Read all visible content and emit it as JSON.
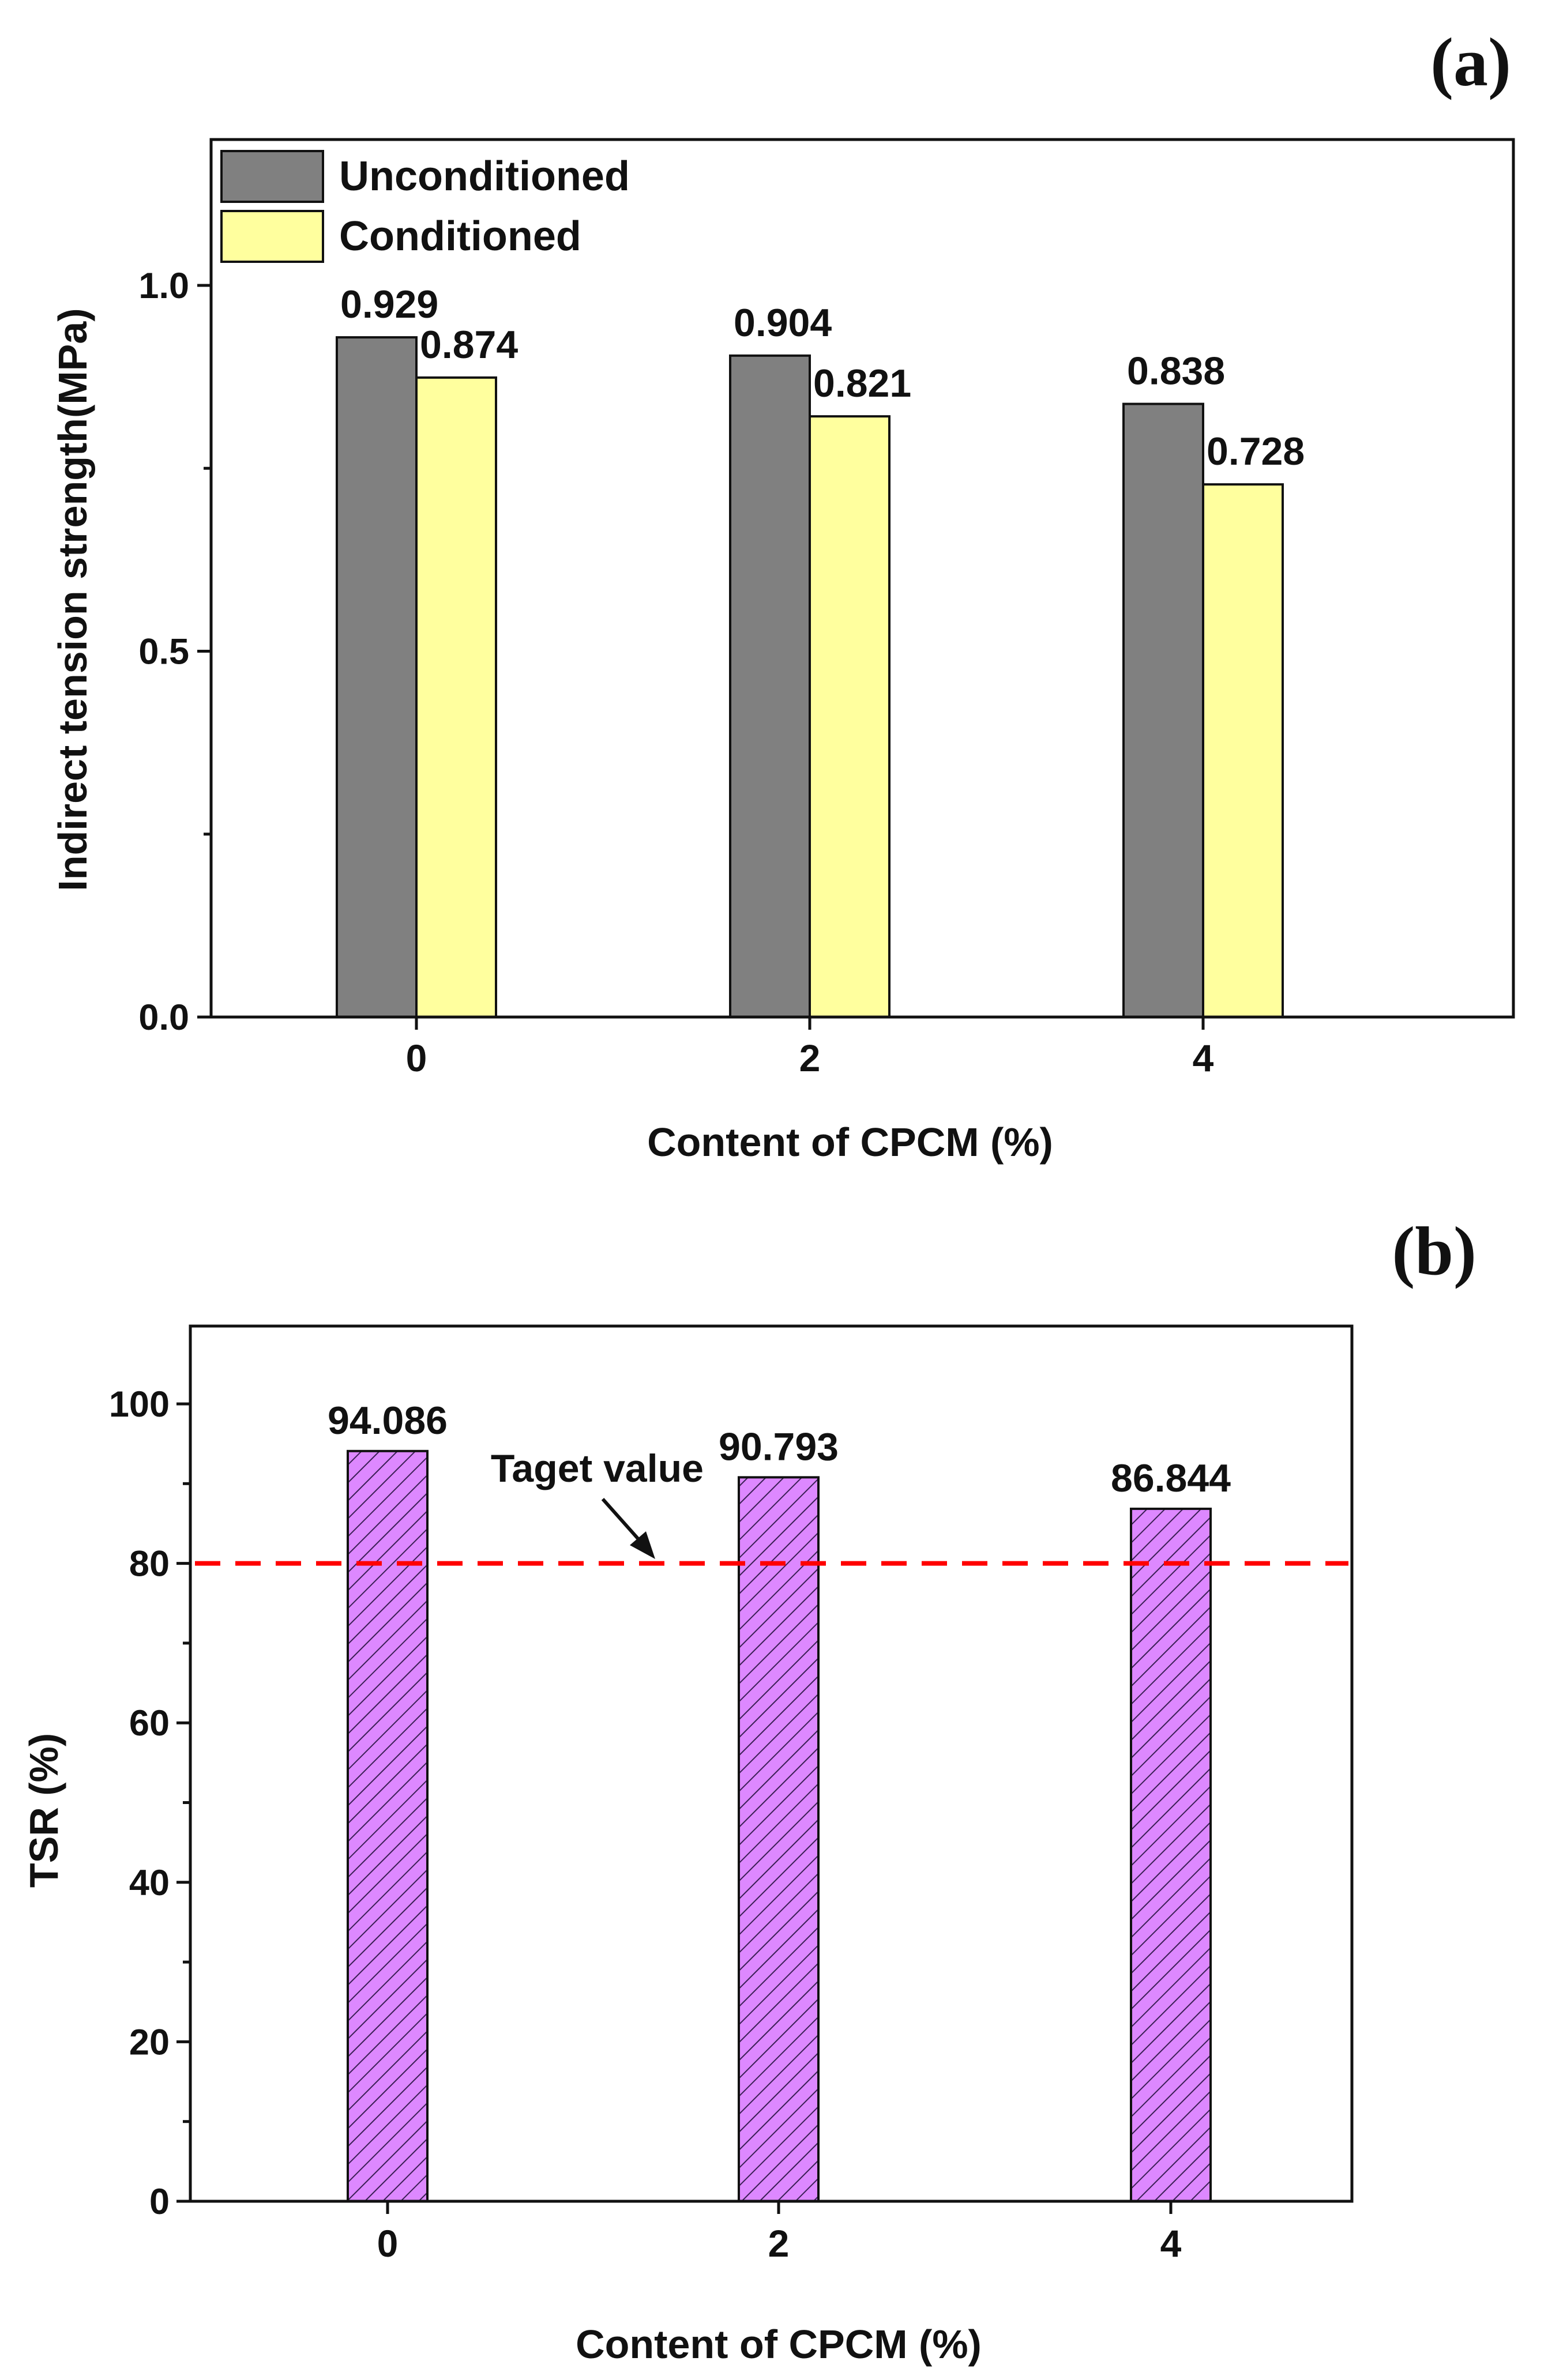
{
  "chart_data": [
    {
      "panel": "(a)",
      "type": "bar",
      "categories": [
        "0",
        "2",
        "4"
      ],
      "series": [
        {
          "name": "Unconditioned",
          "color": "#808080",
          "values": [
            0.929,
            0.904,
            0.838
          ],
          "labels": [
            "0.929",
            "0.904",
            "0.838"
          ]
        },
        {
          "name": "Conditioned",
          "color": "#FFFF9E",
          "values": [
            0.874,
            0.821,
            0.728
          ],
          "labels": [
            "0.874",
            "0.821",
            "0.728"
          ]
        }
      ],
      "xlabel": "Content of CPCM (%)",
      "ylabel": "Indirect tension strength(MPa)",
      "ylim": [
        0,
        1.2
      ],
      "yticks": [
        0.0,
        0.5,
        1.0
      ],
      "ytick_labels": [
        "0.0",
        "0.5",
        "1.0"
      ],
      "legend": "top-left"
    },
    {
      "panel": "(b)",
      "type": "bar",
      "categories": [
        "0",
        "2",
        "4"
      ],
      "series": [
        {
          "name": "TSR",
          "color": "#DD88FF",
          "values": [
            94.086,
            90.793,
            86.844
          ],
          "labels": [
            "94.086",
            "90.793",
            "86.844"
          ]
        }
      ],
      "xlabel": "Content of CPCM (%)",
      "ylabel": "TSR (%)",
      "ylim": [
        0,
        110
      ],
      "yticks": [
        0,
        20,
        40,
        60,
        80,
        100
      ],
      "ytick_labels": [
        "0",
        "20",
        "40",
        "60",
        "80",
        "100"
      ],
      "reference_line": {
        "value": 80,
        "color": "#FF0000",
        "label": "Taget value"
      }
    }
  ]
}
